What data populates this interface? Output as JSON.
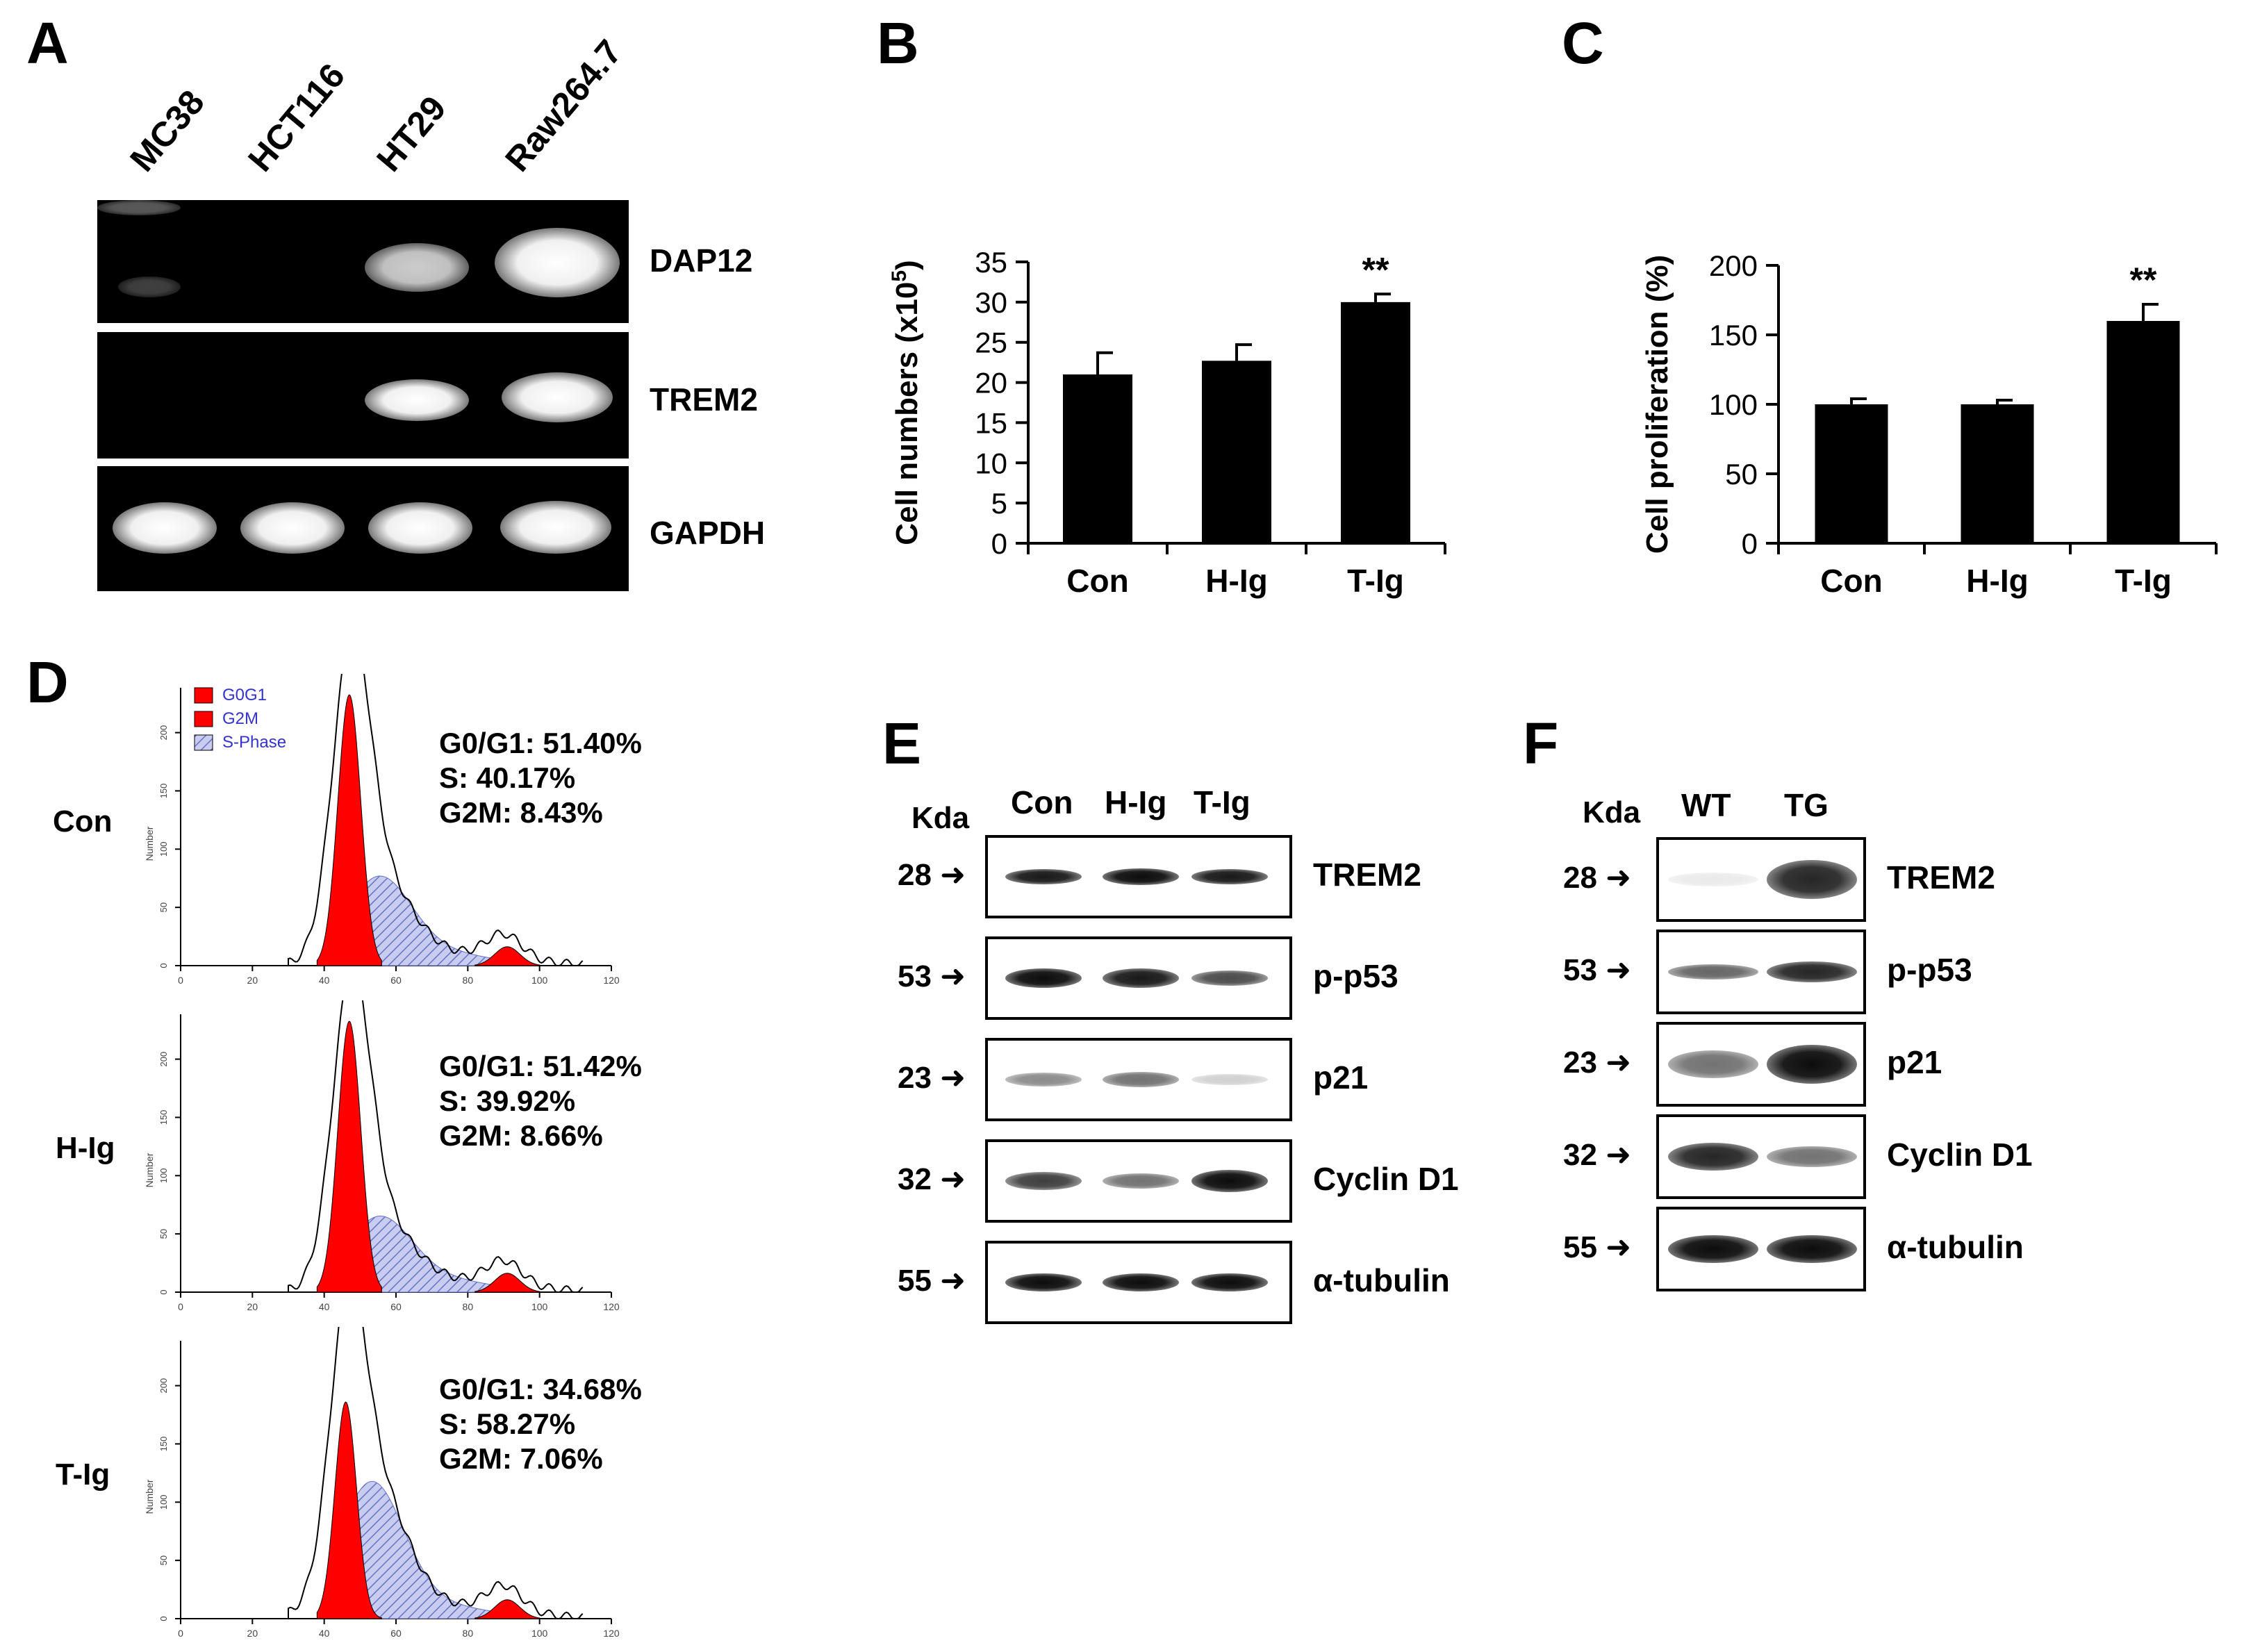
{
  "panels": {
    "A": {
      "label": "A",
      "lanes": [
        "MC38",
        "HCT116",
        "HT29",
        "Raw264.7"
      ],
      "genes": [
        "DAP12",
        "TREM2",
        "GAPDH"
      ]
    },
    "B": {
      "label": "B",
      "significance": "**"
    },
    "C": {
      "label": "C",
      "significance": "**"
    },
    "D": {
      "label": "D",
      "legend": [
        "G0G1",
        "G2M",
        "S-Phase"
      ],
      "axis_label": "Number",
      "x_ticks": [
        "0",
        "20",
        "40",
        "60",
        "80",
        "100",
        "120"
      ],
      "y_ticks": [
        "0",
        "50",
        "100",
        "150",
        "200"
      ],
      "rows": [
        {
          "name": "Con",
          "g0g1": "G0/G1: 51.40%",
          "s": "S: 40.17%",
          "g2m": "G2M: 8.43%"
        },
        {
          "name": "H-Ig",
          "g0g1": "G0/G1: 51.42%",
          "s": "S: 39.92%",
          "g2m": "G2M: 8.66%"
        },
        {
          "name": "T-Ig",
          "g0g1": "G0/G1: 34.68%",
          "s": "S: 58.27%",
          "g2m": "G2M: 7.06%"
        }
      ]
    },
    "E": {
      "label": "E",
      "kda": "Kda",
      "lanes": [
        "Con",
        "H-Ig",
        "T-Ig"
      ],
      "bands": [
        {
          "mw": "28",
          "name": "TREM2"
        },
        {
          "mw": "53",
          "name": "p-p53"
        },
        {
          "mw": "23",
          "name": "p21"
        },
        {
          "mw": "32",
          "name": "Cyclin D1"
        },
        {
          "mw": "55",
          "name": "α-tubulin"
        }
      ]
    },
    "F": {
      "label": "F",
      "kda": "Kda",
      "lanes": [
        "WT",
        "TG"
      ],
      "bands": [
        {
          "mw": "28",
          "name": "TREM2"
        },
        {
          "mw": "53",
          "name": "p-p53"
        },
        {
          "mw": "23",
          "name": "p21"
        },
        {
          "mw": "32",
          "name": "Cyclin D1"
        },
        {
          "mw": "55",
          "name": "α-tubulin"
        }
      ]
    }
  },
  "chart_data": [
    {
      "type": "bar",
      "panel": "B",
      "categories": [
        "Con",
        "H-Ig",
        "T-Ig"
      ],
      "values": [
        21,
        22.7,
        30
      ],
      "errors": [
        2.7,
        2.0,
        1.0
      ],
      "ylabel": "Cell numbers (x10",
      "ylabel_sup": "5",
      "ylabel_end": ")",
      "ylim": [
        0,
        35
      ],
      "yticks": [
        "0",
        "5",
        "10",
        "15",
        "20",
        "25",
        "30",
        "35"
      ],
      "annotations": [
        "",
        "",
        "**"
      ]
    },
    {
      "type": "bar",
      "panel": "C",
      "categories": [
        "Con",
        "H-Ig",
        "T-Ig"
      ],
      "values": [
        100,
        100,
        160
      ],
      "errors": [
        4,
        3,
        12
      ],
      "ylabel": "Cell proliferation (%)",
      "ylim": [
        0,
        200
      ],
      "yticks": [
        "0",
        "50",
        "100",
        "150",
        "200"
      ],
      "annotations": [
        "",
        "",
        "**"
      ]
    }
  ],
  "colors": {
    "bar": "#000000",
    "g0g1": "#ff0000",
    "g2m": "#ff0000",
    "s_phase_fill": "#c8cdf0",
    "s_phase_hatch": "#6670c8",
    "legend_text": "#3333cc"
  }
}
